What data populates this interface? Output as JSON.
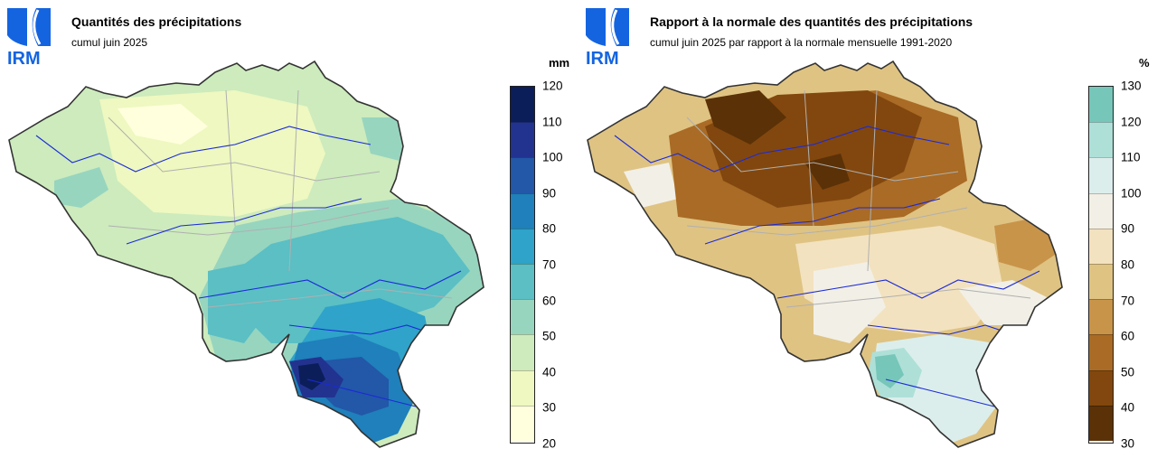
{
  "logo_text": "IRM",
  "left": {
    "title": "Quantités des précipitations",
    "subtitle": "cumul juin 2025",
    "unit": "mm",
    "ticks": [
      "120",
      "110",
      "100",
      "90",
      "80",
      "70",
      "60",
      "50",
      "40",
      "30",
      "20"
    ],
    "colors": [
      "#0b1e5a",
      "#22338f",
      "#2357a8",
      "#1f80bb",
      "#2fa3c9",
      "#5bbfc4",
      "#97d5bf",
      "#cdebbd",
      "#eef8c0",
      "#ffffdd"
    ]
  },
  "right": {
    "title": "Rapport à la normale des quantités des précipitations",
    "subtitle": "cumul juin 2025 par rapport à la normale mensuelle 1991-2020",
    "unit": "%",
    "ticks": [
      "130",
      "120",
      "110",
      "100",
      "90",
      "80",
      "70",
      "60",
      "50",
      "40",
      "30"
    ],
    "colors": [
      "#76c6b9",
      "#aee0d8",
      "#dceeec",
      "#f2efe6",
      "#f3e2bf",
      "#dfc383",
      "#c8944a",
      "#a96b25",
      "#82470e",
      "#5b3107"
    ]
  }
}
